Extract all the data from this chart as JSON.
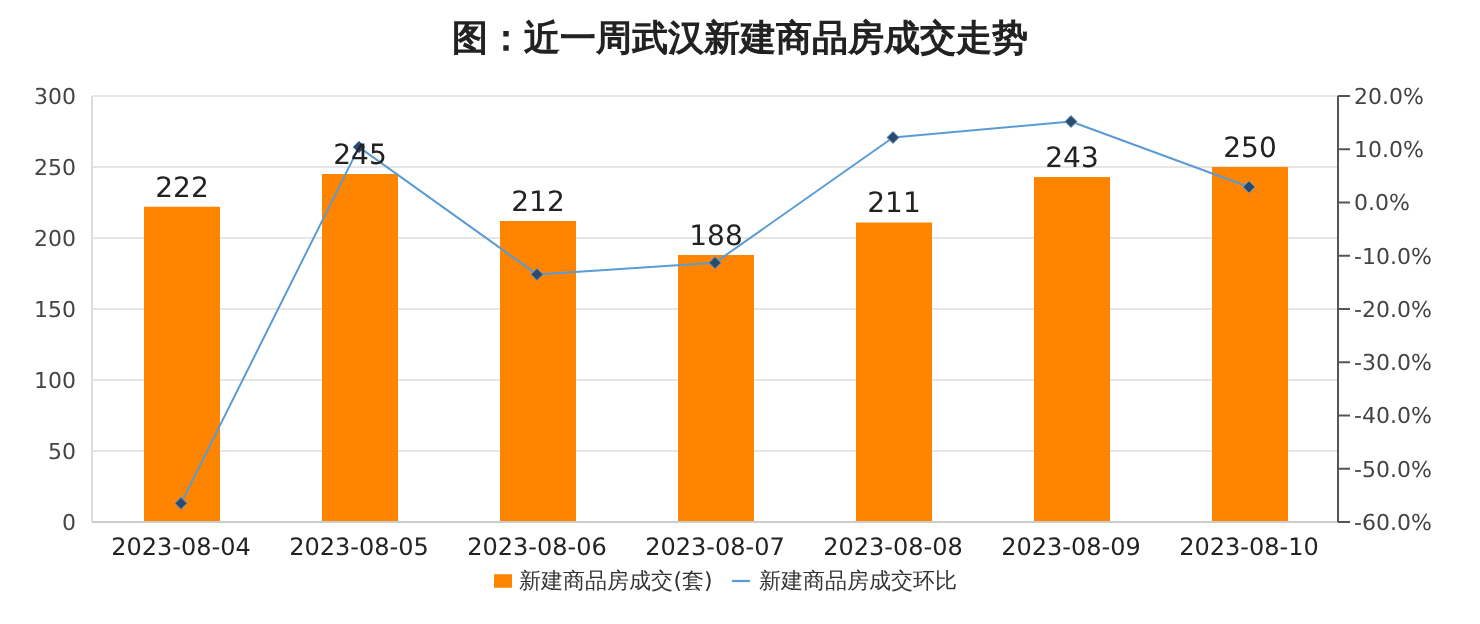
{
  "chart_data": {
    "type": "bar",
    "title": "图：近一周武汉新建商品房成交走势",
    "categories": [
      "2023-08-04",
      "2023-08-05",
      "2023-08-06",
      "2023-08-07",
      "2023-08-08",
      "2023-08-09",
      "2023-08-10"
    ],
    "series": [
      {
        "name": "新建商品房成交(套)",
        "color": "#ff8400",
        "values": [
          222,
          245,
          212,
          188,
          211,
          243,
          250
        ],
        "data_labels": true
      },
      {
        "name": "新建商品房成交环比",
        "type": "line",
        "axis": "y2",
        "color": "#5b9bd5",
        "marker": "diamond",
        "values": [
          -56.5,
          10.4,
          -13.5,
          -11.3,
          12.2,
          15.2,
          2.9
        ]
      }
    ],
    "ylim": [
      0,
      300
    ],
    "yticks": [
      0,
      50,
      100,
      150,
      200,
      250,
      300
    ],
    "y2lim": [
      -60,
      20
    ],
    "y2ticks": [
      {
        "value": -60,
        "label": "-60.0%"
      },
      {
        "value": -50,
        "label": "-50.0%"
      },
      {
        "value": -40,
        "label": "-40.0%"
      },
      {
        "value": -30,
        "label": "-30.0%"
      },
      {
        "value": -20,
        "label": "-20.0%"
      },
      {
        "value": -10,
        "label": "-10.0%"
      },
      {
        "value": 0,
        "label": "0.0%"
      },
      {
        "value": 10,
        "label": "10.0%"
      },
      {
        "value": 20,
        "label": "20.0%"
      }
    ],
    "grid": "y",
    "legend": "bottom"
  }
}
